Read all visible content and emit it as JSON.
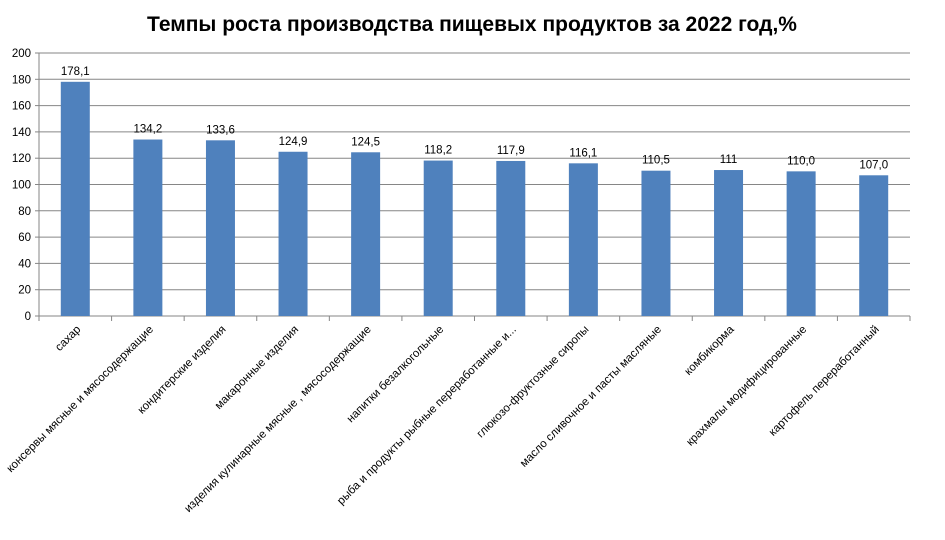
{
  "chart_data": {
    "type": "bar",
    "title": "Темпы роста производства пищевых продуктов за 2022 год,%",
    "xlabel": "",
    "ylabel": "",
    "ylim": [
      0,
      200
    ],
    "yticks": [
      "0",
      "20",
      "40",
      "60",
      "80",
      "100",
      "120",
      "140",
      "160",
      "180",
      "200"
    ],
    "grid": true,
    "legend": "none",
    "bar_color": "#4F81BD",
    "grid_color": "#868686",
    "categories": [
      "сахар",
      "консервы мясные и мясосодержащие",
      "кондитерские изделия",
      "макаронные изделия",
      "изделия кулинарные мясные , мясосодержащие",
      "напитки безалкогольные",
      "рыба и продукты рыбные переработанные и...",
      "глюкозо-фруктозные сиропы",
      "масло сливочное и пасты масляные",
      "комбикорма",
      "крахмалы модифицированные",
      "картофель переработанный"
    ],
    "values": [
      178.1,
      134.2,
      133.6,
      124.9,
      124.5,
      118.2,
      117.9,
      116.1,
      110.5,
      111,
      110.0,
      107.0
    ],
    "data_labels": [
      "178,1",
      "134,2",
      "133,6",
      "124,9",
      "124,5",
      "118,2",
      "117,9",
      "116,1",
      "110,5",
      "111",
      "110,0",
      "107,0"
    ]
  }
}
